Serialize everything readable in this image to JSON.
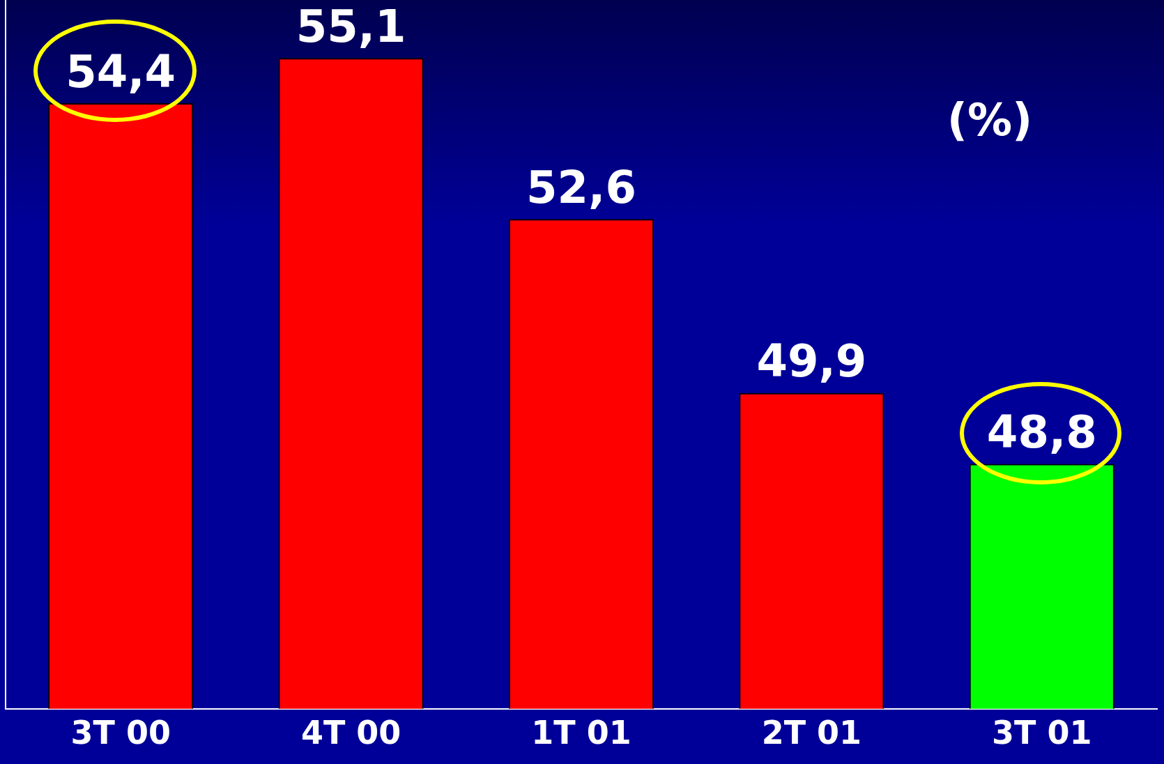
{
  "chart_data": {
    "type": "bar",
    "title": "(%)",
    "categories": [
      "3T 00",
      "4T 00",
      "1T 01",
      "2T 01",
      "3T 01"
    ],
    "values": [
      54.4,
      55.1,
      52.6,
      49.9,
      48.8
    ],
    "value_labels": [
      "54,4",
      "55,1",
      "52,6",
      "49,9",
      "48,8"
    ],
    "colors": [
      "#ff0000",
      "#ff0000",
      "#ff0000",
      "#ff0000",
      "#00ff00"
    ],
    "ylim": [
      45,
      56
    ],
    "grid": false,
    "legend": false
  }
}
